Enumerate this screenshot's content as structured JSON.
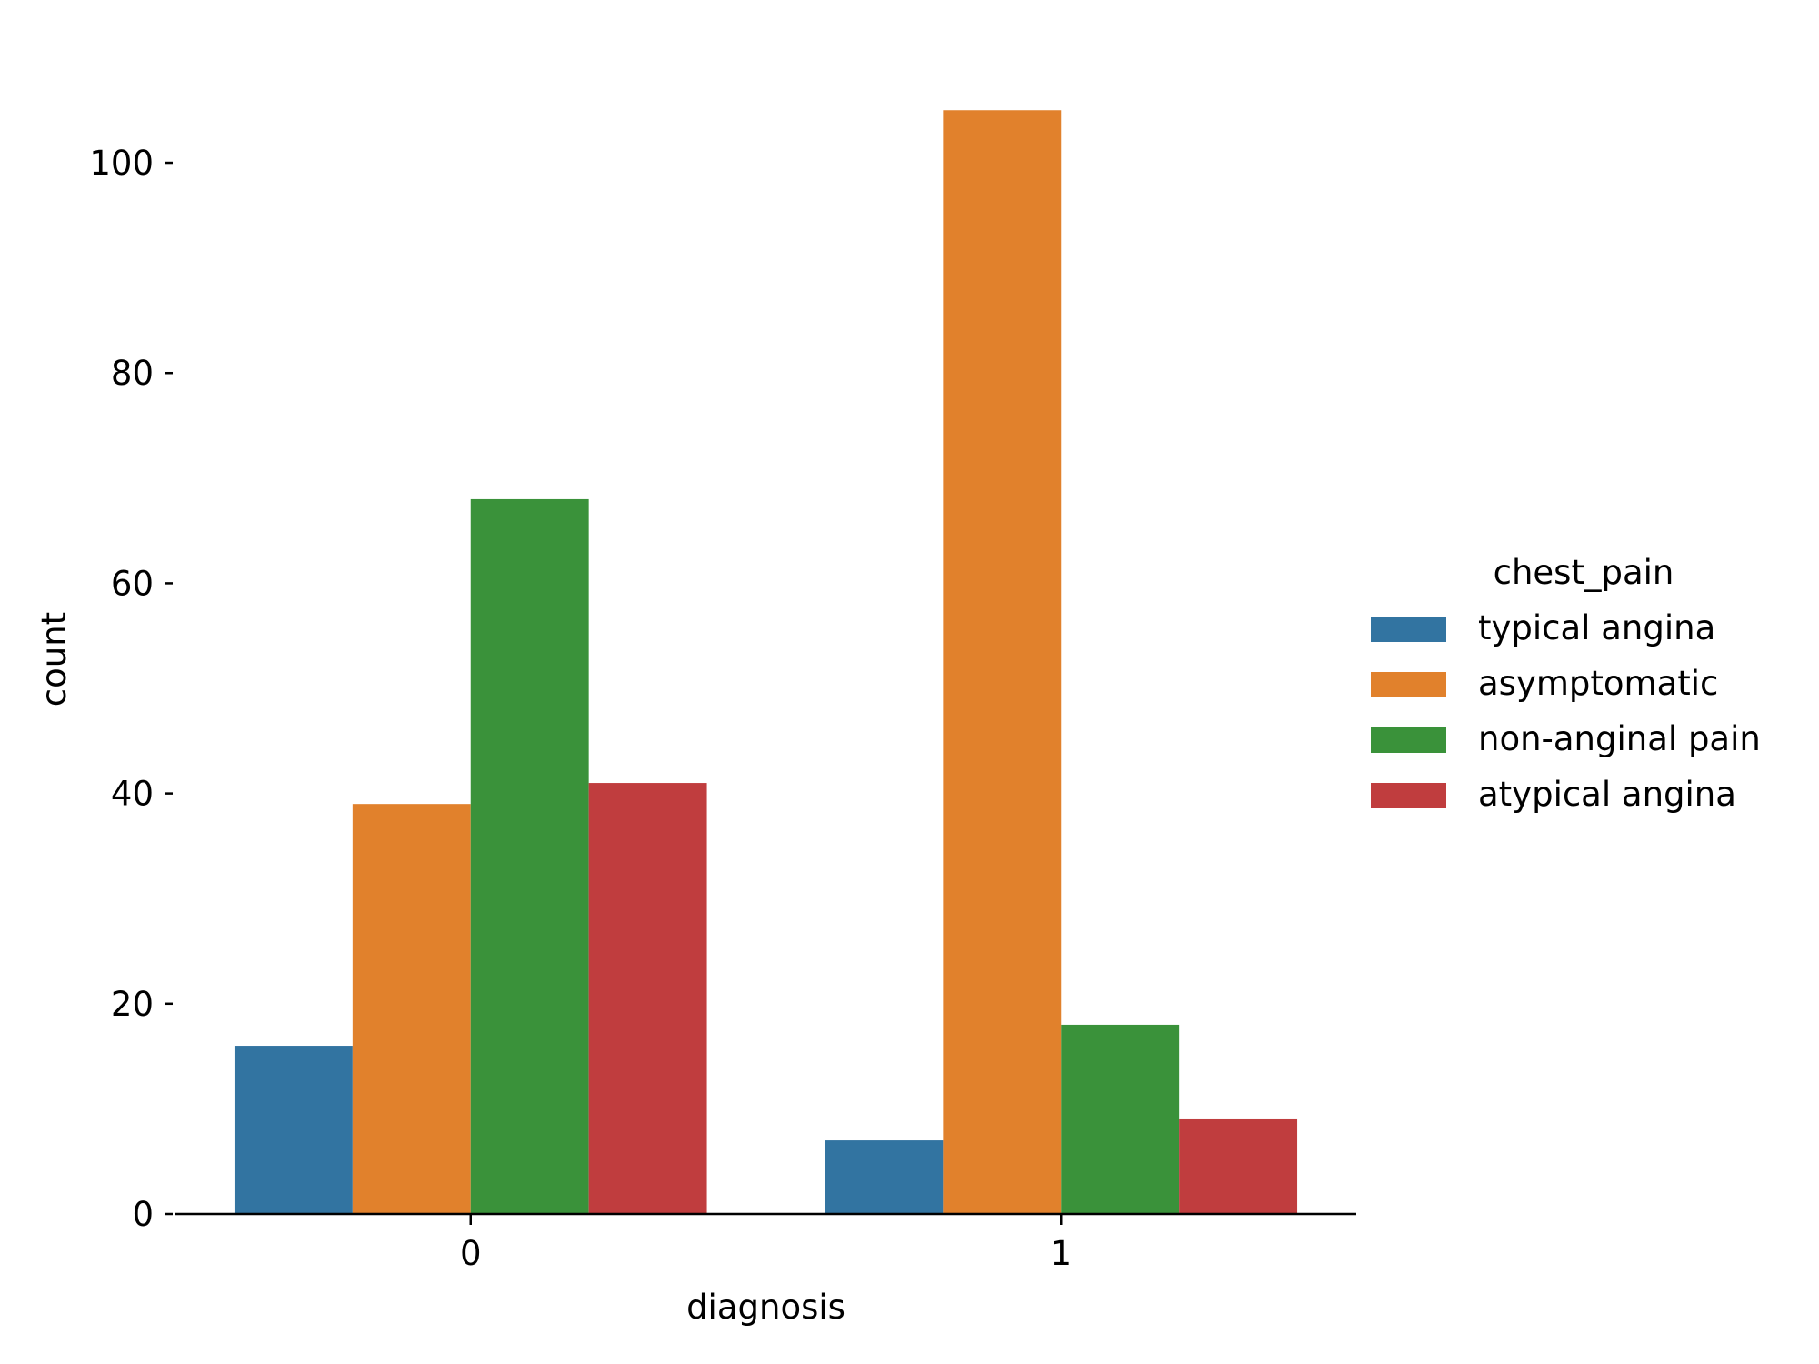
{
  "chart_data": {
    "type": "bar",
    "title": "",
    "xlabel": "diagnosis",
    "ylabel": "count",
    "categories": [
      "0",
      "1"
    ],
    "ylim": [
      0,
      109
    ],
    "yticks": [
      0,
      20,
      40,
      60,
      80,
      100
    ],
    "grid": false,
    "legend": {
      "title": "chest_pain",
      "placement": "right"
    },
    "series": [
      {
        "name": "typical angina",
        "color": "#3274a1",
        "values": [
          16,
          7
        ]
      },
      {
        "name": "asymptomatic",
        "color": "#e1812c",
        "values": [
          39,
          105
        ]
      },
      {
        "name": "non-anginal pain",
        "color": "#3a923a",
        "values": [
          68,
          18
        ]
      },
      {
        "name": "atypical angina",
        "color": "#c03d3e",
        "values": [
          41,
          9
        ]
      }
    ]
  }
}
